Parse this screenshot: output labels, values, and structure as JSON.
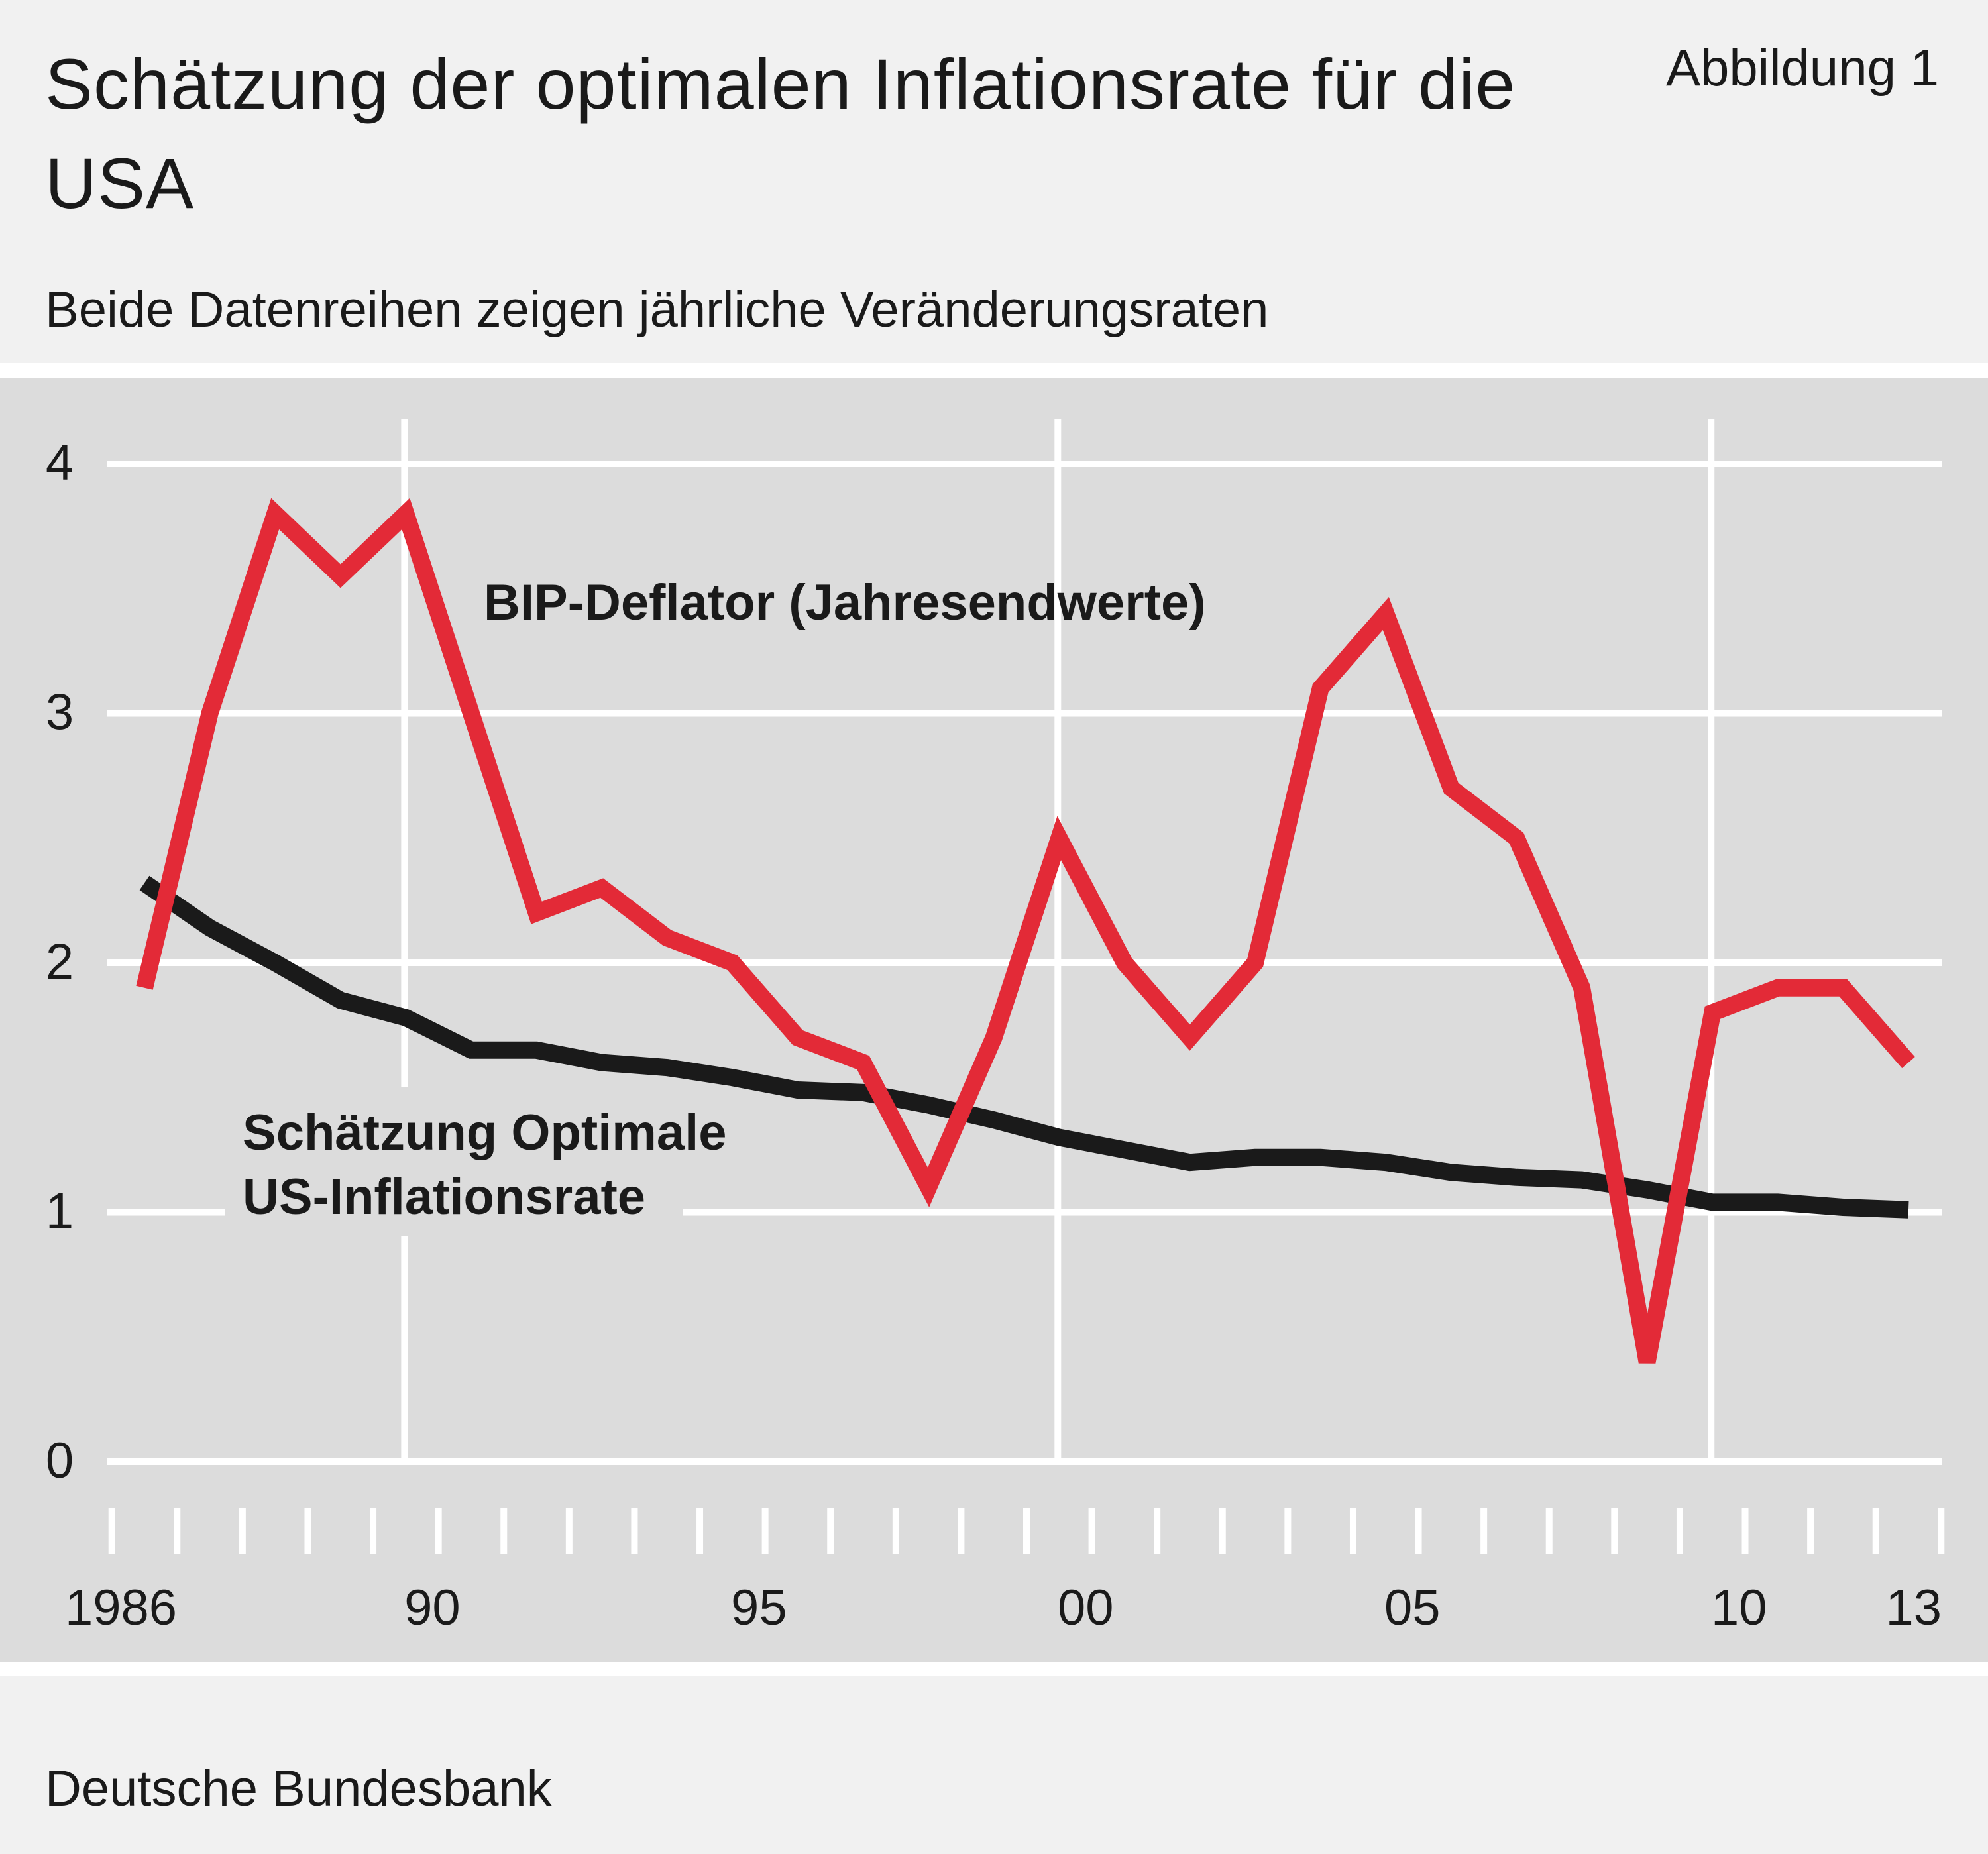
{
  "header": {
    "title": "Schätzung der optimalen Inflationsrate für die USA",
    "figure_label": "Abbildung 1",
    "subtitle": "Beide Datenreihen zeigen jährliche Veränderungsraten"
  },
  "footer": {
    "source": "Deutsche Bundesbank"
  },
  "colors": {
    "background": "#f1f1f1",
    "plot_background": "#dcdcdc",
    "grid": "#ffffff",
    "deflator": "#e32a37",
    "optimal": "#1a1a1a"
  },
  "chart_data": {
    "type": "line",
    "title": "Schätzung der optimalen Inflationsrate für die USA",
    "subtitle": "Beide Datenreihen zeigen jährliche Veränderungsraten",
    "x": [
      1986,
      1987,
      1988,
      1989,
      1990,
      1991,
      1992,
      1993,
      1994,
      1995,
      1996,
      1997,
      1998,
      1999,
      2000,
      2001,
      2002,
      2003,
      2004,
      2005,
      2006,
      2007,
      2008,
      2009,
      2010,
      2011,
      2012,
      2013
    ],
    "xlim": [
      1986,
      2013
    ],
    "ylim": [
      0,
      4
    ],
    "yticks": [
      0,
      1,
      2,
      3,
      4
    ],
    "ytick_labels": [
      "0",
      "1",
      "2",
      "3",
      "4"
    ],
    "xticks": [
      1986,
      1990,
      1995,
      2000,
      2005,
      2010,
      2013
    ],
    "xtick_labels": [
      "1986",
      "90",
      "95",
      "00",
      "05",
      "10",
      "13"
    ],
    "grid": true,
    "series": [
      {
        "name": "BIP-Deflator (Jahresendwerte)",
        "values": [
          1.9,
          3.0,
          3.8,
          3.55,
          3.8,
          3.0,
          2.2,
          2.3,
          2.1,
          2.0,
          1.7,
          1.6,
          1.1,
          1.7,
          2.5,
          2.0,
          1.7,
          2.0,
          3.1,
          3.4,
          2.7,
          2.5,
          1.9,
          0.4,
          1.8,
          1.9,
          1.9,
          1.6
        ]
      },
      {
        "name": "Schätzung Optimale US-Inflationsrate",
        "values": [
          2.32,
          2.14,
          2.0,
          1.85,
          1.78,
          1.65,
          1.65,
          1.6,
          1.58,
          1.54,
          1.49,
          1.48,
          1.43,
          1.37,
          1.3,
          1.25,
          1.2,
          1.22,
          1.22,
          1.2,
          1.16,
          1.14,
          1.13,
          1.09,
          1.04,
          1.04,
          1.02,
          1.01
        ]
      }
    ],
    "annotations": [
      {
        "text": "BIP-Deflator (Jahresendwerte)"
      },
      {
        "text": "Schätzung Optimale US-Inflationsrate",
        "lines": [
          "Schätzung Optimale",
          "US-Inflationsrate"
        ]
      }
    ]
  }
}
